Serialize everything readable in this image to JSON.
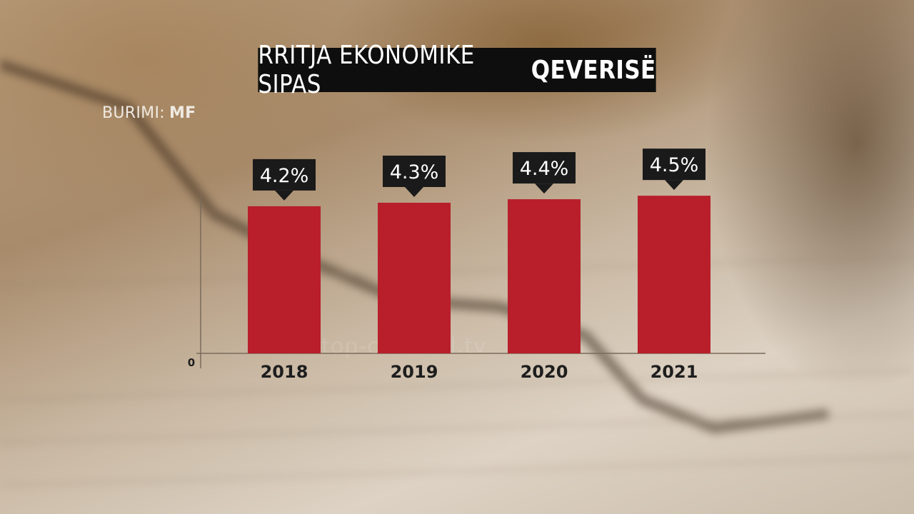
{
  "header": {
    "title_regular": "RRITJA EKONOMIKE SIPAS",
    "title_bold": "QEVERISË"
  },
  "source": {
    "label": "BURIMI:",
    "value": "MF"
  },
  "watermark": "top-channel.tv",
  "colors": {
    "bar": "#b81f2b",
    "label_box": "#1a1a1a",
    "title_bg": "#0e0e0e"
  },
  "chart_data": {
    "type": "bar",
    "title": "RRITJA EKONOMIKE SIPAS QEVERISË",
    "categories": [
      "2018",
      "2019",
      "2020",
      "2021"
    ],
    "values": [
      4.2,
      4.3,
      4.4,
      4.5
    ],
    "data_labels": [
      "4.2%",
      "4.3%",
      "4.4%",
      "4.5%"
    ],
    "y_tick_labels": [
      "0"
    ],
    "xlabel": "",
    "ylabel": "",
    "ylim": [
      0,
      5.4
    ],
    "grid": false,
    "legend": "none"
  }
}
